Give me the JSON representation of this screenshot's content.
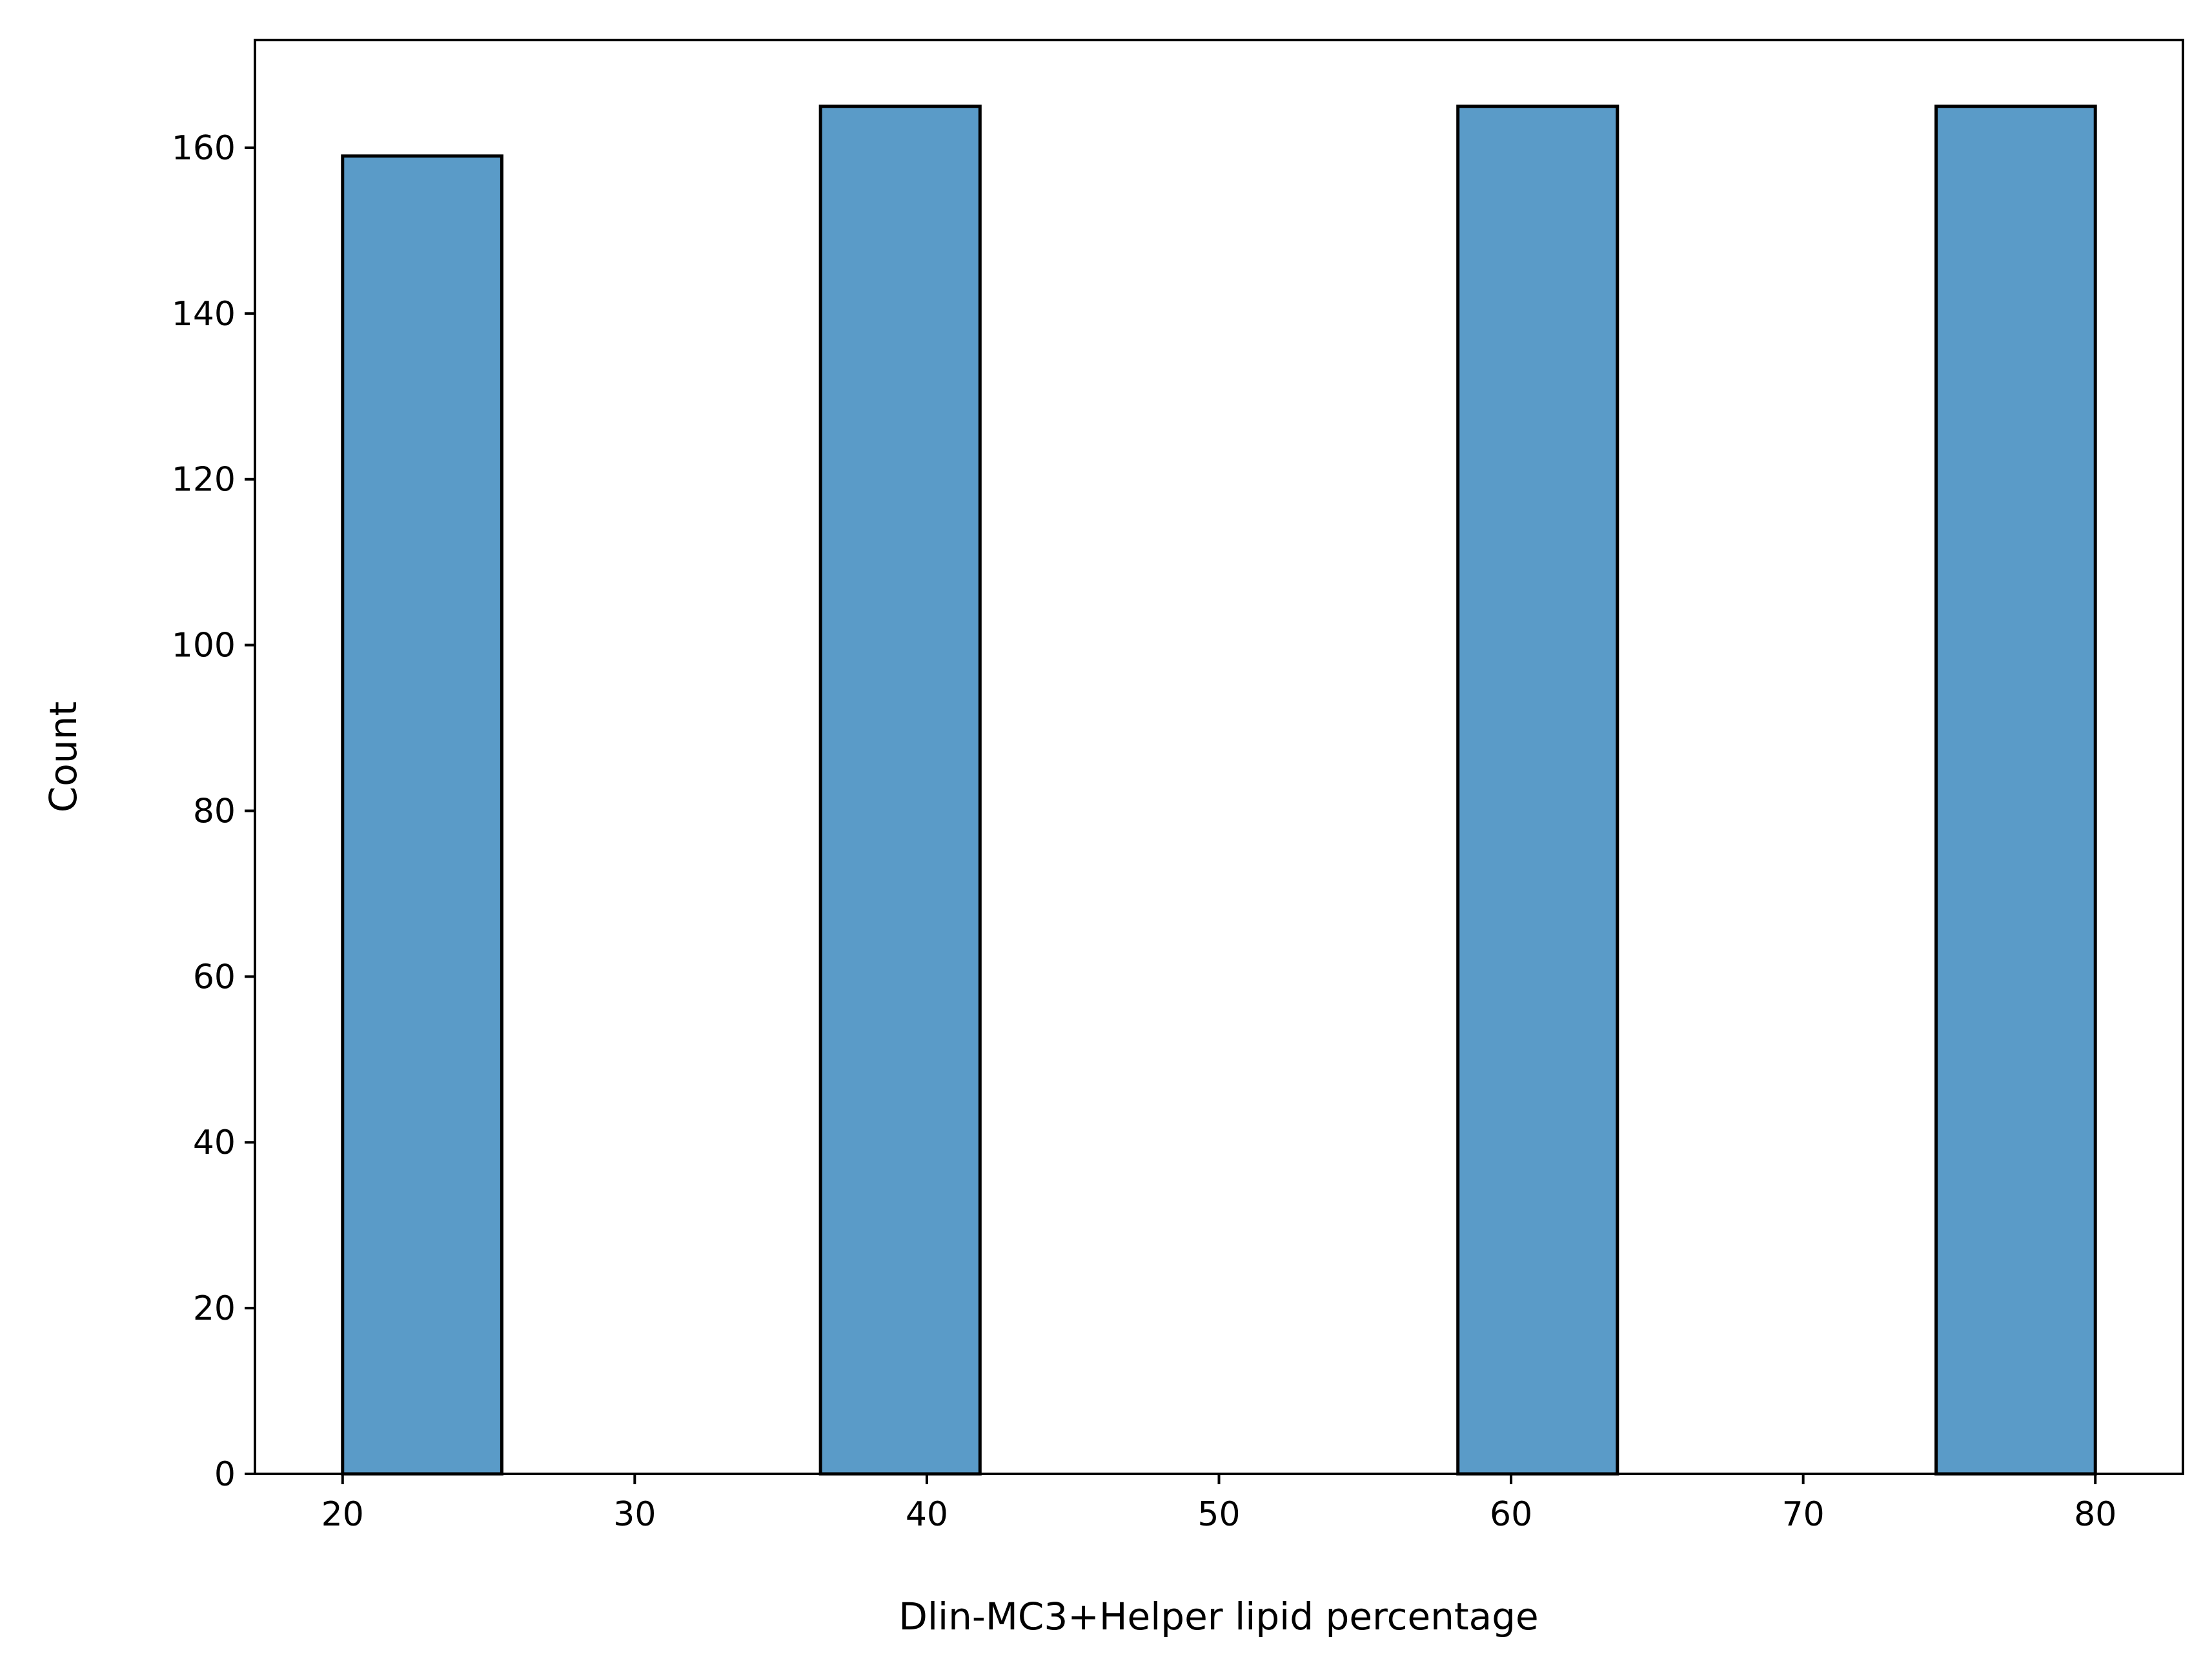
{
  "chart_data": {
    "type": "bar",
    "subtype": "histogram",
    "title": "",
    "xlabel": "Dlin-MC3+Helper lipid percentage",
    "ylabel": "Count",
    "xlim": [
      17,
      83
    ],
    "ylim": [
      0,
      173
    ],
    "xticks": [
      20,
      30,
      40,
      50,
      60,
      70,
      80
    ],
    "yticks": [
      0,
      20,
      40,
      60,
      80,
      100,
      120,
      140,
      160
    ],
    "grid": false,
    "legend": "none",
    "bar_color": "#5a9bc8",
    "edge_color": "#000000",
    "bins": [
      {
        "x0": 20.0,
        "x1": 25.45,
        "count": 159
      },
      {
        "x0": 36.36,
        "x1": 41.82,
        "count": 165
      },
      {
        "x0": 58.18,
        "x1": 63.64,
        "count": 165
      },
      {
        "x0": 74.55,
        "x1": 80.0,
        "count": 165
      }
    ]
  }
}
